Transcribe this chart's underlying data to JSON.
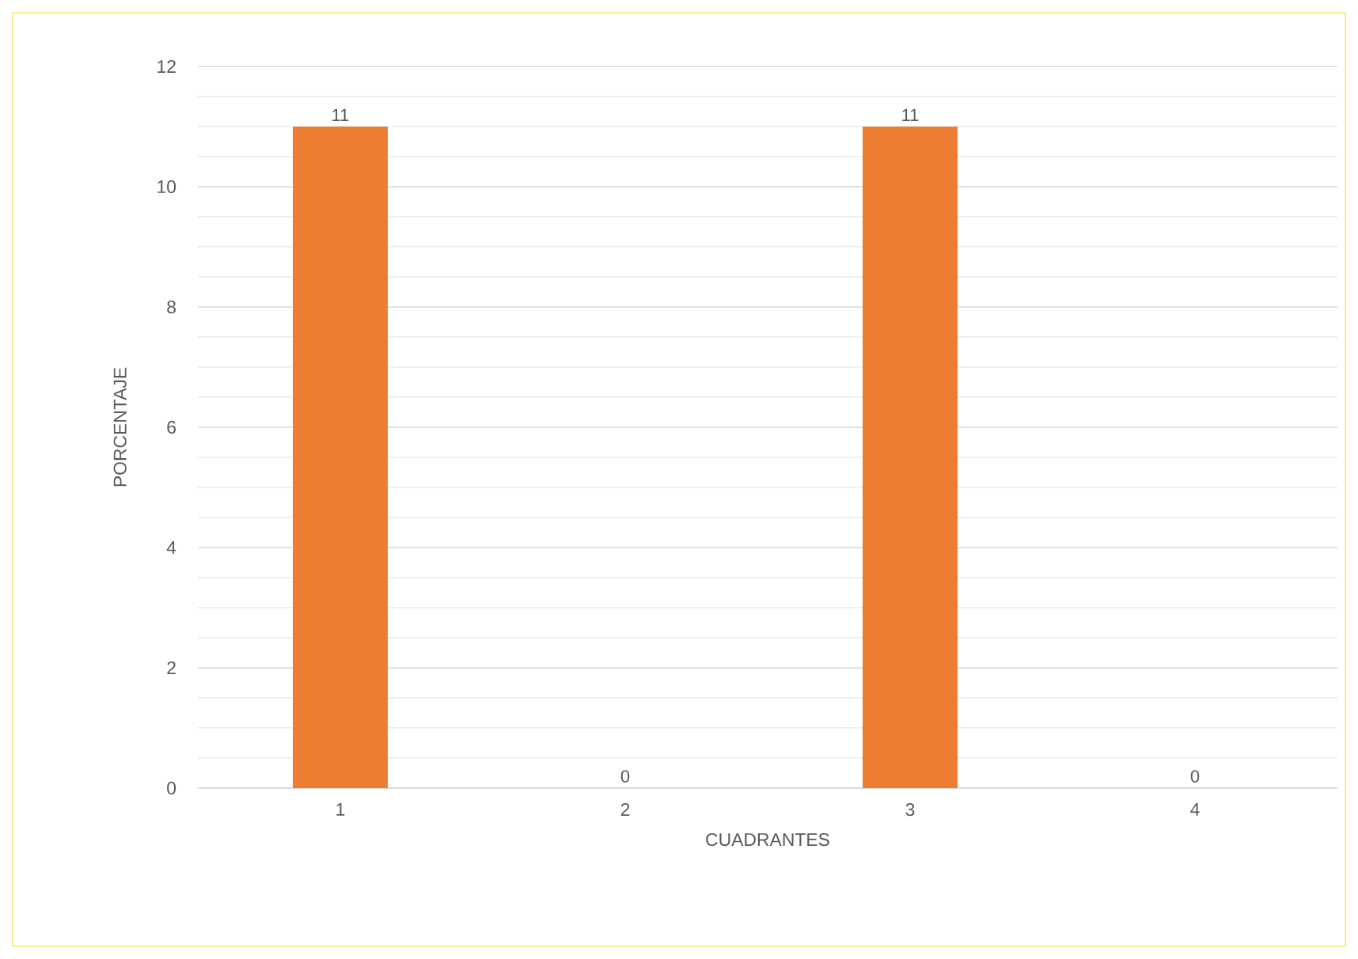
{
  "chart_data": {
    "type": "bar",
    "xlabel": "CUADRANTES",
    "ylabel": "PORCENTAJE",
    "categories": [
      "1",
      "2",
      "3",
      "4"
    ],
    "values": [
      11,
      0,
      11,
      0
    ],
    "color": "#ed7d31",
    "ylim": [
      0,
      12
    ],
    "yticks": [
      0,
      2,
      4,
      6,
      8,
      10,
      12
    ],
    "grid": "y",
    "data_labels": true
  }
}
